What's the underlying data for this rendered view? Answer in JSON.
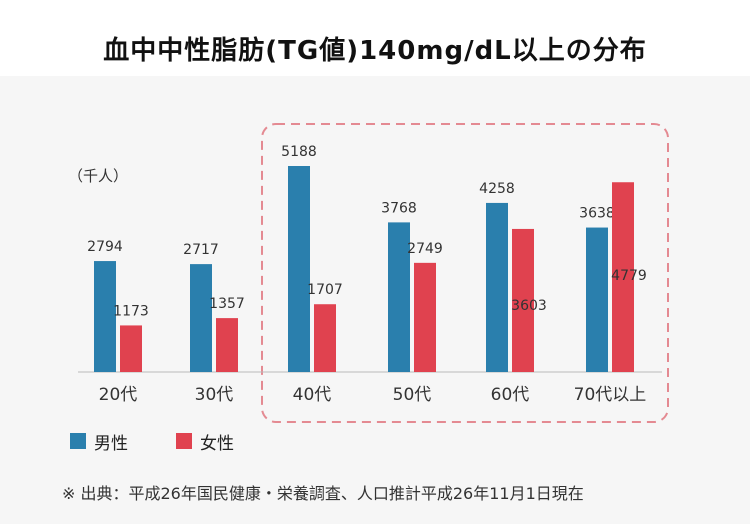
{
  "title": "血中中性脂肪(TG値)140mg/dL以上の分布",
  "colors": {
    "male": "#2a7fad",
    "female": "#e0424f",
    "highlight_border": "#e48a92"
  },
  "chart_data": {
    "type": "bar",
    "unit": "（千人）",
    "categories": [
      "20代",
      "30代",
      "40代",
      "50代",
      "60代",
      "70代以上"
    ],
    "series": [
      {
        "name": "男性",
        "values": [
          2794,
          2717,
          5188,
          3768,
          4258,
          3638
        ]
      },
      {
        "name": "女性",
        "values": [
          1173,
          1357,
          1707,
          2749,
          3603,
          4779
        ]
      }
    ],
    "ylim": [
      0,
      5188
    ],
    "grid": false,
    "legend_position": "bottom-left",
    "highlighted_categories": [
      "40代",
      "50代",
      "60代",
      "70代以上"
    ]
  },
  "legend": {
    "male_label": "男性",
    "female_label": "女性"
  },
  "source": "※ 出典：平成26年国民健康・栄養調査、人口推計平成26年11月1日現在"
}
